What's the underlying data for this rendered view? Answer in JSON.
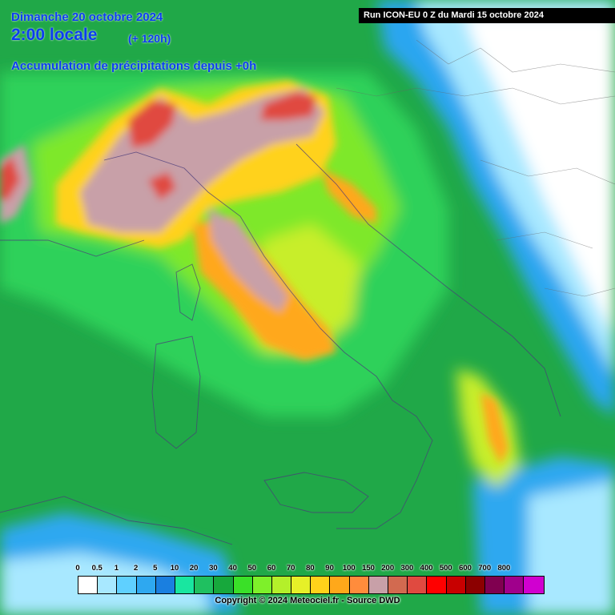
{
  "header": {
    "date": "Dimanche 20 octobre 2024",
    "time": "2:00 locale",
    "lead": "(+ 120h)",
    "subtitle": "Accumulation de précipitations depuis +0h",
    "run": "Run ICON-EU 0 Z du Mardi 15 octobre 2024"
  },
  "legend": {
    "labels": [
      "0",
      "0.5",
      "1",
      "2",
      "5",
      "10",
      "20",
      "30",
      "40",
      "50",
      "60",
      "70",
      "80",
      "90",
      "100",
      "150",
      "200",
      "300",
      "400",
      "500",
      "600",
      "700",
      "800"
    ],
    "colors": [
      "#ffffff",
      "#a8e8ff",
      "#5fd0ff",
      "#2ea8f0",
      "#1a7fe0",
      "#19e6a0",
      "#1fc060",
      "#17a83c",
      "#3ae028",
      "#7ef02a",
      "#b4f02a",
      "#e6f028",
      "#ffd21a",
      "#ffa81a",
      "#ff8c3c",
      "#c8a0a8",
      "#d26a50",
      "#e04a40",
      "#ff0000",
      "#c80000",
      "#8c0000",
      "#800050",
      "#a0008c",
      "#d000d0"
    ]
  },
  "copyright": "Copyright © 2024 Meteociel.fr - Source DWD"
}
